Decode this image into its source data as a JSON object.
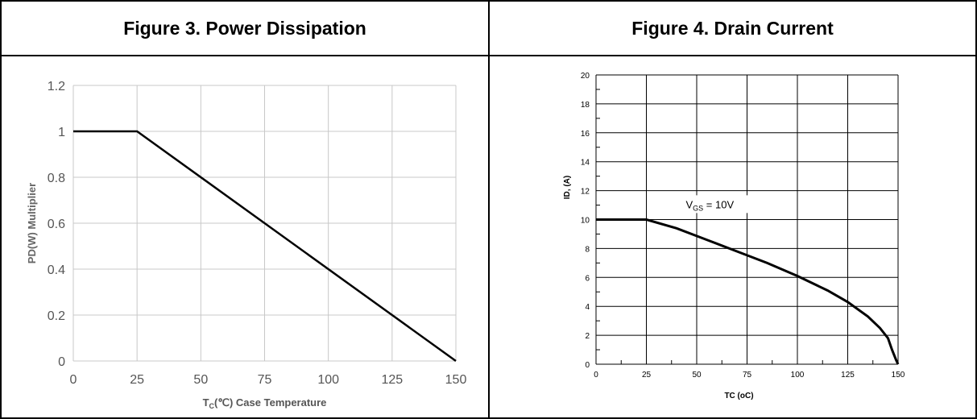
{
  "panels": [
    {
      "header": "Figure 3. Power Dissipation"
    },
    {
      "header": "Figure 4. Drain Current"
    }
  ],
  "chart_data": [
    {
      "type": "line",
      "title": "Figure 3. Power Dissipation",
      "xlabel_main": "T",
      "xlabel_sub": "C",
      "xlabel_rest": "(℃) Case Temperature",
      "ylabel": "PD(W) Multiplier",
      "xlim": [
        0,
        150
      ],
      "ylim": [
        0,
        1.2
      ],
      "xticks": [
        0,
        25,
        50,
        75,
        100,
        125,
        150
      ],
      "yticks": [
        0,
        0.2,
        0.4,
        0.6,
        0.8,
        1,
        1.2
      ],
      "xtick_labels": [
        "0",
        "25",
        "50",
        "75",
        "100",
        "125",
        "150"
      ],
      "ytick_labels": [
        "0",
        "0.2",
        "0.4",
        "0.6",
        "0.8",
        "1",
        "1.2"
      ],
      "grid": true,
      "series": [
        {
          "x": [
            0,
            25,
            150
          ],
          "y": [
            1,
            1,
            0
          ]
        }
      ]
    },
    {
      "type": "line",
      "title": "Figure 4. Drain Current",
      "xlabel": "TC (oC)",
      "ylabel": "ID, (A)",
      "xlim": [
        0,
        150
      ],
      "ylim": [
        0,
        20
      ],
      "xticks": [
        0,
        25,
        50,
        75,
        100,
        125,
        150
      ],
      "yticks": [
        0,
        2,
        4,
        6,
        8,
        10,
        12,
        14,
        16,
        18,
        20
      ],
      "xtick_labels": [
        "0",
        "25",
        "50",
        "75",
        "100",
        "125",
        "150"
      ],
      "ytick_labels": [
        "0",
        "2",
        "4",
        "6",
        "8",
        "10",
        "12",
        "14",
        "16",
        "18",
        "20"
      ],
      "grid": true,
      "annotation": {
        "main": "V",
        "sub": "GS",
        "rest": " = 10V",
        "x": 55,
        "y": 10.9
      },
      "series": [
        {
          "x": [
            0,
            25,
            40,
            55,
            70,
            85,
            100,
            115,
            125,
            135,
            141,
            145,
            147,
            149,
            150
          ],
          "y": [
            10,
            10,
            9.4,
            8.6,
            7.8,
            7.0,
            6.1,
            5.1,
            4.3,
            3.3,
            2.5,
            1.8,
            1.0,
            0.3,
            0
          ]
        }
      ]
    }
  ]
}
